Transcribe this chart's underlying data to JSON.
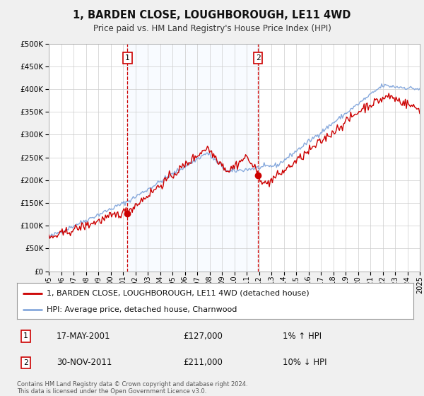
{
  "title": "1, BARDEN CLOSE, LOUGHBOROUGH, LE11 4WD",
  "subtitle": "Price paid vs. HM Land Registry's House Price Index (HPI)",
  "legend_line1": "1, BARDEN CLOSE, LOUGHBOROUGH, LE11 4WD (detached house)",
  "legend_line2": "HPI: Average price, detached house, Charnwood",
  "sale1_label": "1",
  "sale1_date": "17-MAY-2001",
  "sale1_price": "£127,000",
  "sale1_hpi": "1% ↑ HPI",
  "sale1_x": 2001.37,
  "sale1_y": 127000,
  "sale2_label": "2",
  "sale2_date": "30-NOV-2011",
  "sale2_price": "£211,000",
  "sale2_hpi": "10% ↓ HPI",
  "sale2_x": 2011.92,
  "sale2_y": 211000,
  "red_line_color": "#cc0000",
  "blue_line_color": "#88aadd",
  "shaded_color": "#ddeeff",
  "vline_color": "#cc0000",
  "dot_color": "#cc0000",
  "background_color": "#f0f0f0",
  "plot_bg_color": "#ffffff",
  "grid_color": "#cccccc",
  "ylim": [
    0,
    500000
  ],
  "xlim_start": 1995,
  "xlim_end": 2025,
  "footnote1": "Contains HM Land Registry data © Crown copyright and database right 2024.",
  "footnote2": "This data is licensed under the Open Government Licence v3.0."
}
